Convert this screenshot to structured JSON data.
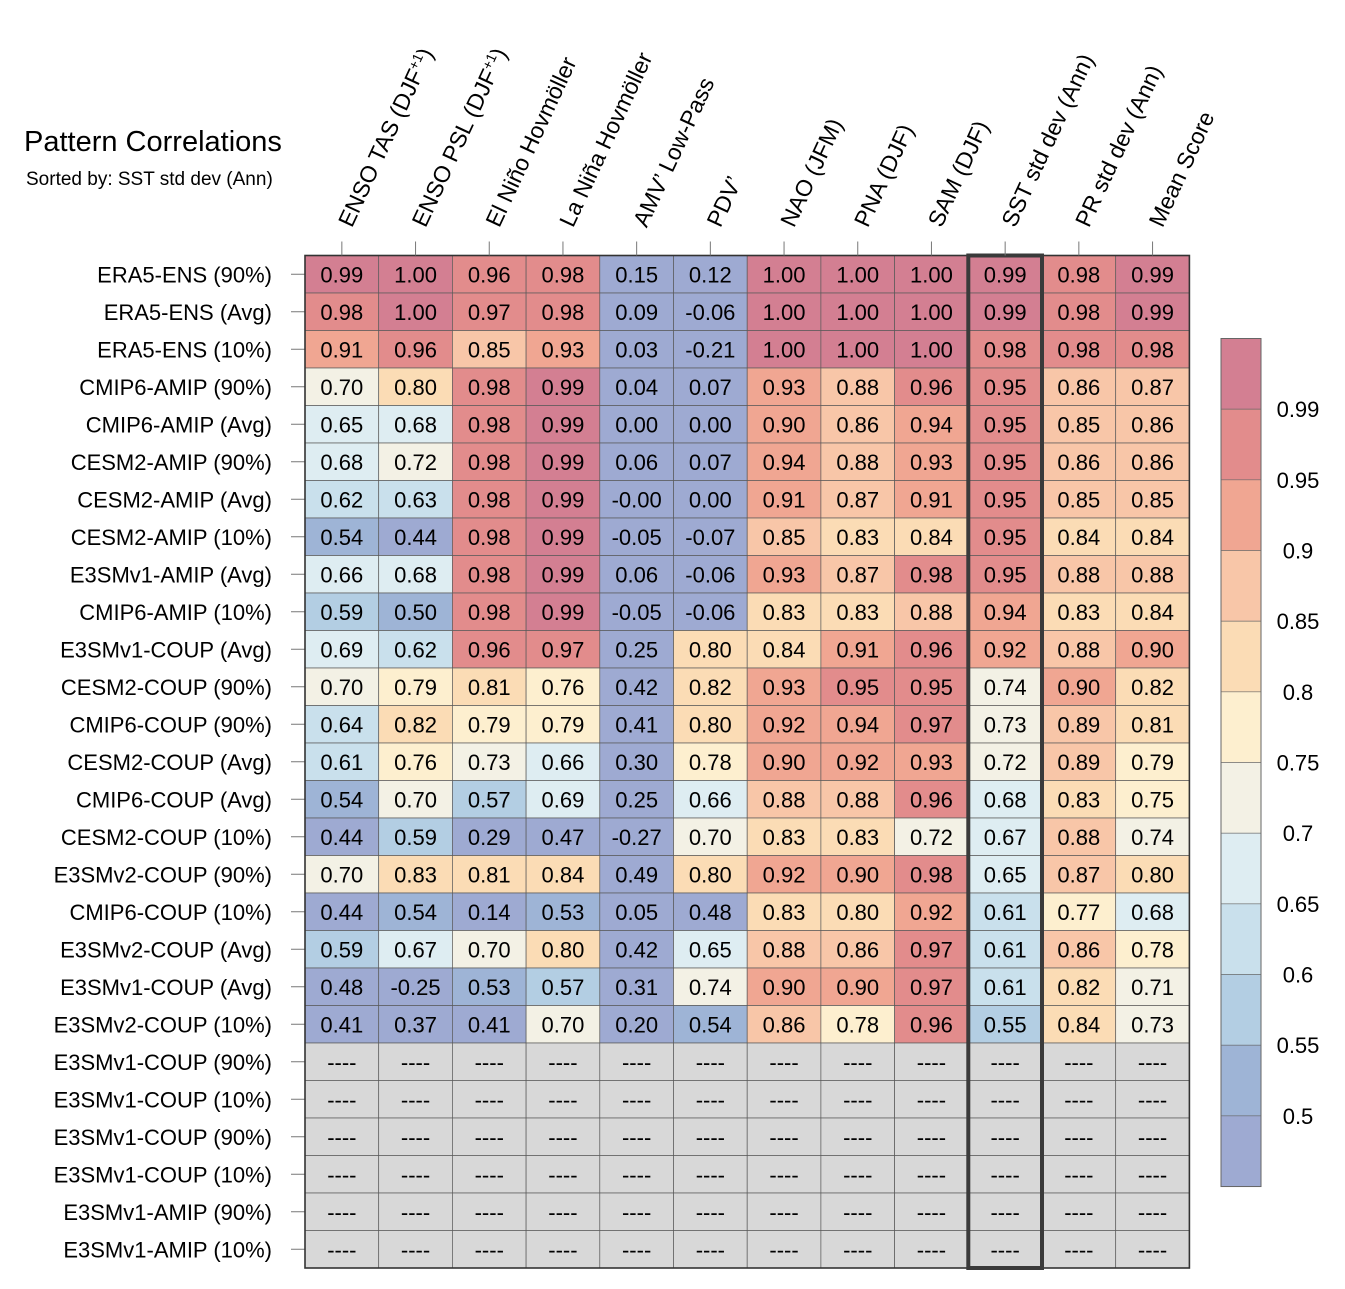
{
  "title": "Pattern Correlations",
  "subtitle": "Sorted by: SST std dev (Ann)",
  "chart_data": {
    "type": "heatmap",
    "title": "Pattern Correlations",
    "subtitle": "Sorted by: SST std dev (Ann)",
    "sorted_by": "SST std dev (Ann)",
    "highlighted_column": "SST std dev (Ann)",
    "columns": [
      {
        "base": "ENSO TAS (DJF",
        "sup": "+1",
        "tail": ")"
      },
      {
        "base": "ENSO PSL (DJF",
        "sup": "+1",
        "tail": ")"
      },
      {
        "base": "El Niño Hovmöller",
        "sup": "",
        "tail": ""
      },
      {
        "base": "La Niña Hovmöller",
        "sup": "",
        "tail": ""
      },
      {
        "base": "AMV’ Low-Pass",
        "sup": "",
        "tail": ""
      },
      {
        "base": "PDV’",
        "sup": "",
        "tail": ""
      },
      {
        "base": "NAO (JFM)",
        "sup": "",
        "tail": ""
      },
      {
        "base": "PNA (DJF)",
        "sup": "",
        "tail": ""
      },
      {
        "base": "SAM (DJF)",
        "sup": "",
        "tail": ""
      },
      {
        "base": "SST std dev (Ann)",
        "sup": "",
        "tail": ""
      },
      {
        "base": "PR std dev (Ann)",
        "sup": "",
        "tail": ""
      },
      {
        "base": "Mean Score",
        "sup": "",
        "tail": ""
      }
    ],
    "rows": [
      {
        "name": "ERA5-ENS (90%)",
        "values": [
          "0.99",
          "1.00",
          "0.96",
          "0.98",
          "0.15",
          "0.12",
          "1.00",
          "1.00",
          "1.00",
          "0.99",
          "0.98",
          "0.99"
        ]
      },
      {
        "name": "ERA5-ENS (Avg)",
        "values": [
          "0.98",
          "1.00",
          "0.97",
          "0.98",
          "0.09",
          "-0.06",
          "1.00",
          "1.00",
          "1.00",
          "0.99",
          "0.98",
          "0.99"
        ]
      },
      {
        "name": "ERA5-ENS (10%)",
        "values": [
          "0.91",
          "0.96",
          "0.85",
          "0.93",
          "0.03",
          "-0.21",
          "1.00",
          "1.00",
          "1.00",
          "0.98",
          "0.98",
          "0.98"
        ]
      },
      {
        "name": "CMIP6-AMIP (90%)",
        "values": [
          "0.70",
          "0.80",
          "0.98",
          "0.99",
          "0.04",
          "0.07",
          "0.93",
          "0.88",
          "0.96",
          "0.95",
          "0.86",
          "0.87"
        ]
      },
      {
        "name": "CMIP6-AMIP (Avg)",
        "values": [
          "0.65",
          "0.68",
          "0.98",
          "0.99",
          "0.00",
          "0.00",
          "0.90",
          "0.86",
          "0.94",
          "0.95",
          "0.85",
          "0.86"
        ]
      },
      {
        "name": "CESM2-AMIP (90%)",
        "values": [
          "0.68",
          "0.72",
          "0.98",
          "0.99",
          "0.06",
          "0.07",
          "0.94",
          "0.88",
          "0.93",
          "0.95",
          "0.86",
          "0.86"
        ]
      },
      {
        "name": "CESM2-AMIP (Avg)",
        "values": [
          "0.62",
          "0.63",
          "0.98",
          "0.99",
          "-0.00",
          "0.00",
          "0.91",
          "0.87",
          "0.91",
          "0.95",
          "0.85",
          "0.85"
        ]
      },
      {
        "name": "CESM2-AMIP (10%)",
        "values": [
          "0.54",
          "0.44",
          "0.98",
          "0.99",
          "-0.05",
          "-0.07",
          "0.85",
          "0.83",
          "0.84",
          "0.95",
          "0.84",
          "0.84"
        ]
      },
      {
        "name": "E3SMv1-AMIP (Avg)",
        "values": [
          "0.66",
          "0.68",
          "0.98",
          "0.99",
          "0.06",
          "-0.06",
          "0.93",
          "0.87",
          "0.98",
          "0.95",
          "0.88",
          "0.88"
        ]
      },
      {
        "name": "CMIP6-AMIP (10%)",
        "values": [
          "0.59",
          "0.50",
          "0.98",
          "0.99",
          "-0.05",
          "-0.06",
          "0.83",
          "0.83",
          "0.88",
          "0.94",
          "0.83",
          "0.84"
        ]
      },
      {
        "name": "E3SMv1-COUP (Avg)",
        "values": [
          "0.69",
          "0.62",
          "0.96",
          "0.97",
          "0.25",
          "0.80",
          "0.84",
          "0.91",
          "0.96",
          "0.92",
          "0.88",
          "0.90"
        ]
      },
      {
        "name": "CESM2-COUP (90%)",
        "values": [
          "0.70",
          "0.79",
          "0.81",
          "0.76",
          "0.42",
          "0.82",
          "0.93",
          "0.95",
          "0.95",
          "0.74",
          "0.90",
          "0.82"
        ]
      },
      {
        "name": "CMIP6-COUP (90%)",
        "values": [
          "0.64",
          "0.82",
          "0.79",
          "0.79",
          "0.41",
          "0.80",
          "0.92",
          "0.94",
          "0.97",
          "0.73",
          "0.89",
          "0.81"
        ]
      },
      {
        "name": "CESM2-COUP (Avg)",
        "values": [
          "0.61",
          "0.76",
          "0.73",
          "0.66",
          "0.30",
          "0.78",
          "0.90",
          "0.92",
          "0.93",
          "0.72",
          "0.89",
          "0.79"
        ]
      },
      {
        "name": "CMIP6-COUP (Avg)",
        "values": [
          "0.54",
          "0.70",
          "0.57",
          "0.69",
          "0.25",
          "0.66",
          "0.88",
          "0.88",
          "0.96",
          "0.68",
          "0.83",
          "0.75"
        ]
      },
      {
        "name": "CESM2-COUP (10%)",
        "values": [
          "0.44",
          "0.59",
          "0.29",
          "0.47",
          "-0.27",
          "0.70",
          "0.83",
          "0.83",
          "0.72",
          "0.67",
          "0.88",
          "0.74"
        ]
      },
      {
        "name": "E3SMv2-COUP (90%)",
        "values": [
          "0.70",
          "0.83",
          "0.81",
          "0.84",
          "0.49",
          "0.80",
          "0.92",
          "0.90",
          "0.98",
          "0.65",
          "0.87",
          "0.80"
        ]
      },
      {
        "name": "CMIP6-COUP (10%)",
        "values": [
          "0.44",
          "0.54",
          "0.14",
          "0.53",
          "0.05",
          "0.48",
          "0.83",
          "0.80",
          "0.92",
          "0.61",
          "0.77",
          "0.68"
        ]
      },
      {
        "name": "E3SMv2-COUP (Avg)",
        "values": [
          "0.59",
          "0.67",
          "0.70",
          "0.80",
          "0.42",
          "0.65",
          "0.88",
          "0.86",
          "0.97",
          "0.61",
          "0.86",
          "0.78"
        ]
      },
      {
        "name": "E3SMv1-COUP (Avg)",
        "values": [
          "0.48",
          "-0.25",
          "0.53",
          "0.57",
          "0.31",
          "0.74",
          "0.90",
          "0.90",
          "0.97",
          "0.61",
          "0.82",
          "0.71"
        ]
      },
      {
        "name": "E3SMv2-COUP (10%)",
        "values": [
          "0.41",
          "0.37",
          "0.41",
          "0.70",
          "0.20",
          "0.54",
          "0.86",
          "0.78",
          "0.96",
          "0.55",
          "0.84",
          "0.73"
        ]
      },
      {
        "name": "E3SMv1-COUP (90%)",
        "values": [
          "----",
          "----",
          "----",
          "----",
          "----",
          "----",
          "----",
          "----",
          "----",
          "----",
          "----",
          "----"
        ]
      },
      {
        "name": "E3SMv1-COUP (10%)",
        "values": [
          "----",
          "----",
          "----",
          "----",
          "----",
          "----",
          "----",
          "----",
          "----",
          "----",
          "----",
          "----"
        ]
      },
      {
        "name": "E3SMv1-COUP (90%)",
        "values": [
          "----",
          "----",
          "----",
          "----",
          "----",
          "----",
          "----",
          "----",
          "----",
          "----",
          "----",
          "----"
        ]
      },
      {
        "name": "E3SMv1-COUP (10%)",
        "values": [
          "----",
          "----",
          "----",
          "----",
          "----",
          "----",
          "----",
          "----",
          "----",
          "----",
          "----",
          "----"
        ]
      },
      {
        "name": "E3SMv1-AMIP (90%)",
        "values": [
          "----",
          "----",
          "----",
          "----",
          "----",
          "----",
          "----",
          "----",
          "----",
          "----",
          "----",
          "----"
        ]
      },
      {
        "name": "E3SMv1-AMIP (10%)",
        "values": [
          "----",
          "----",
          "----",
          "----",
          "----",
          "----",
          "----",
          "----",
          "----",
          "----",
          "----",
          "----"
        ]
      }
    ],
    "missing_value_label": "----",
    "missing_color": "#d8d8d8",
    "colorbar": {
      "labels": [
        "0.99",
        "0.95",
        "0.9",
        "0.85",
        "0.8",
        "0.75",
        "0.7",
        "0.65",
        "0.6",
        "0.55",
        "0.5"
      ],
      "thresholds": [
        0.99,
        0.95,
        0.9,
        0.85,
        0.8,
        0.75,
        0.7,
        0.65,
        0.6,
        0.55,
        0.5
      ],
      "colors_top_to_bottom": [
        "#d37f92",
        "#e28c8c",
        "#f0a692",
        "#f8c6a8",
        "#fbdcb5",
        "#fdefcf",
        "#f3f1e5",
        "#deedf2",
        "#c9e0ec",
        "#b3cee3",
        "#9eb4d6",
        "#9eaad2"
      ]
    }
  }
}
